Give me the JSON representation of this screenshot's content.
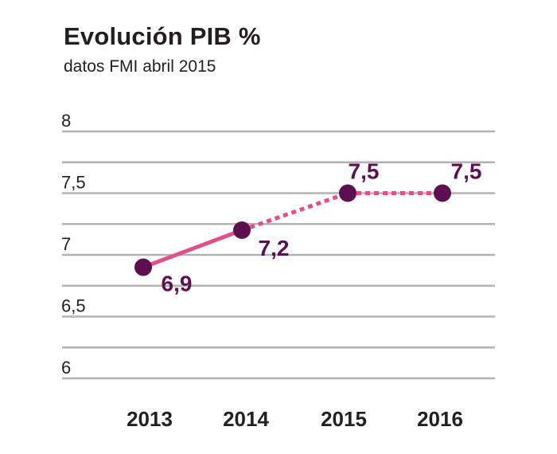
{
  "title": "Evolución PIB %",
  "subtitle": "datos FMI abril 2015",
  "colors": {
    "grid": "#b3b3b3",
    "line": "#e0518a",
    "point": "#5e0f4f",
    "label": "#5e0f4f",
    "text": "#231f20"
  },
  "chart_data": {
    "type": "line",
    "title": "Evolución PIB %",
    "subtitle": "datos FMI abril 2015",
    "categories": [
      "2013",
      "2014",
      "2015",
      "2016"
    ],
    "values": [
      6.9,
      7.2,
      7.5,
      7.5
    ],
    "data_labels": [
      "6,9",
      "7,2",
      "7,5",
      "7,5"
    ],
    "segment_styles": [
      "solid",
      "dotted",
      "dotted"
    ],
    "ylim": [
      6,
      8
    ],
    "y_ticks": [
      6,
      6.5,
      7,
      7.5,
      8
    ],
    "y_tick_labels": [
      "6",
      "6,5",
      "7",
      "7,5",
      "8"
    ],
    "grid": true,
    "legend": "none"
  }
}
